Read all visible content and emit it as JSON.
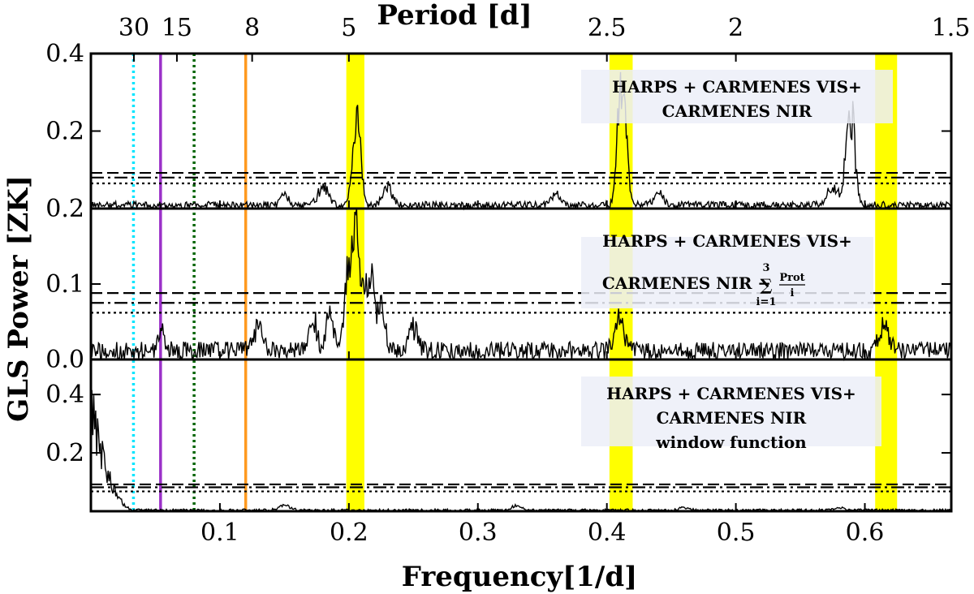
{
  "chart_data": {
    "type": "line",
    "x_title": "Frequency[1/d]",
    "y_title": "GLS Power [ZK]",
    "top_axis_title": "Period [d]",
    "xlim": [
      0.0,
      0.667
    ],
    "x_ticks": [
      0.1,
      0.2,
      0.3,
      0.4,
      0.5,
      0.6
    ],
    "x_tick_labels": [
      "0.1",
      "0.2",
      "0.3",
      "0.4",
      "0.5",
      "0.6"
    ],
    "period_ticks": [
      {
        "label": "30",
        "period": 30
      },
      {
        "label": "15",
        "period": 15
      },
      {
        "label": "8",
        "period": 8
      },
      {
        "label": "5",
        "period": 5
      },
      {
        "label": "2.5",
        "period": 2.5
      },
      {
        "label": "2",
        "period": 2
      },
      {
        "label": "1.5",
        "period": 1.5
      }
    ],
    "highlight_bands": [
      {
        "x_min": 0.198,
        "x_max": 0.212,
        "color": "#ffff00"
      },
      {
        "x_min": 0.402,
        "x_max": 0.42,
        "color": "#ffff00"
      },
      {
        "x_min": 0.608,
        "x_max": 0.625,
        "color": "#ffff00"
      }
    ],
    "vertical_markers": [
      {
        "x": 0.033,
        "color": "#00e5ff",
        "style": "dotted"
      },
      {
        "x": 0.054,
        "color": "#9b30c8",
        "style": "solid"
      },
      {
        "x": 0.08,
        "color": "#006400",
        "style": "dotted"
      },
      {
        "x": 0.12,
        "color": "#ff9a1f",
        "style": "solid"
      }
    ],
    "panels": [
      {
        "ylim": [
          0.0,
          0.4
        ],
        "y_ticks": [
          0.2,
          0.4
        ],
        "y_tick_labels": [
          "0.2",
          "0.4"
        ],
        "legend_lines": [
          "HARPS + CARMENES VIS+",
          "CARMENES NIR"
        ],
        "fap_levels": {
          "dashed": 0.092,
          "dashdot": 0.08,
          "dotted": 0.065
        },
        "noise_level": 0.014,
        "peaks": [
          {
            "x": 0.205,
            "y": 0.19,
            "w": 0.004
          },
          {
            "x": 0.208,
            "y": 0.15,
            "w": 0.003
          },
          {
            "x": 0.413,
            "y": 0.3,
            "w": 0.004
          },
          {
            "x": 0.409,
            "y": 0.22,
            "w": 0.003
          },
          {
            "x": 0.59,
            "y": 0.26,
            "w": 0.004
          },
          {
            "x": 0.586,
            "y": 0.14,
            "w": 0.003
          },
          {
            "x": 0.23,
            "y": 0.06,
            "w": 0.005
          },
          {
            "x": 0.18,
            "y": 0.055,
            "w": 0.006
          },
          {
            "x": 0.15,
            "y": 0.04,
            "w": 0.004
          },
          {
            "x": 0.36,
            "y": 0.035,
            "w": 0.005
          },
          {
            "x": 0.575,
            "y": 0.06,
            "w": 0.006
          },
          {
            "x": 0.44,
            "y": 0.04,
            "w": 0.005
          }
        ]
      },
      {
        "ylim": [
          0.0,
          0.2
        ],
        "y_ticks": [
          0.0,
          0.1,
          0.2
        ],
        "y_tick_labels": [
          "0.0",
          "0.1",
          "0.2"
        ],
        "legend_lines": [
          "HARPS + CARMENES VIS+",
          "CARMENES NIR −"
        ],
        "legend_formula": {
          "sum_top": "3",
          "sum_bottom": "i=1",
          "numerator": "Prot",
          "denominator": "i"
        },
        "fap_levels": {
          "dashed": 0.088,
          "dashdot": 0.075,
          "dotted": 0.062
        },
        "noise_level": 0.018,
        "peaks": [
          {
            "x": 0.206,
            "y": 0.162,
            "w": 0.003
          },
          {
            "x": 0.202,
            "y": 0.1,
            "w": 0.004
          },
          {
            "x": 0.212,
            "y": 0.11,
            "w": 0.004
          },
          {
            "x": 0.218,
            "y": 0.115,
            "w": 0.003
          },
          {
            "x": 0.198,
            "y": 0.075,
            "w": 0.004
          },
          {
            "x": 0.225,
            "y": 0.08,
            "w": 0.004
          },
          {
            "x": 0.185,
            "y": 0.06,
            "w": 0.004
          },
          {
            "x": 0.172,
            "y": 0.055,
            "w": 0.004
          },
          {
            "x": 0.13,
            "y": 0.05,
            "w": 0.005
          },
          {
            "x": 0.41,
            "y": 0.05,
            "w": 0.005
          },
          {
            "x": 0.055,
            "y": 0.03,
            "w": 0.004
          },
          {
            "x": 0.615,
            "y": 0.045,
            "w": 0.005
          },
          {
            "x": 0.25,
            "y": 0.04,
            "w": 0.005
          }
        ]
      },
      {
        "ylim": [
          0.0,
          0.52
        ],
        "y_ticks": [
          0.2,
          0.4
        ],
        "y_tick_labels": [
          "0.2",
          "0.4"
        ],
        "legend_lines": [
          "HARPS + CARMENES VIS+",
          "CARMENES NIR",
          "window function"
        ],
        "fap_levels": {
          "dashed": 0.092,
          "dashdot": 0.082,
          "dotted": 0.068
        },
        "noise_level": 0.006,
        "peaks": [
          {
            "x": 0.15,
            "y": 0.022,
            "w": 0.006
          },
          {
            "x": 0.33,
            "y": 0.018,
            "w": 0.005
          },
          {
            "x": 0.46,
            "y": 0.015,
            "w": 0.005
          },
          {
            "x": 0.58,
            "y": 0.012,
            "w": 0.005
          }
        ],
        "low_freq_rise": {
          "x_start": 0.0,
          "x_end": 0.035,
          "y_max": 0.48
        }
      }
    ]
  }
}
